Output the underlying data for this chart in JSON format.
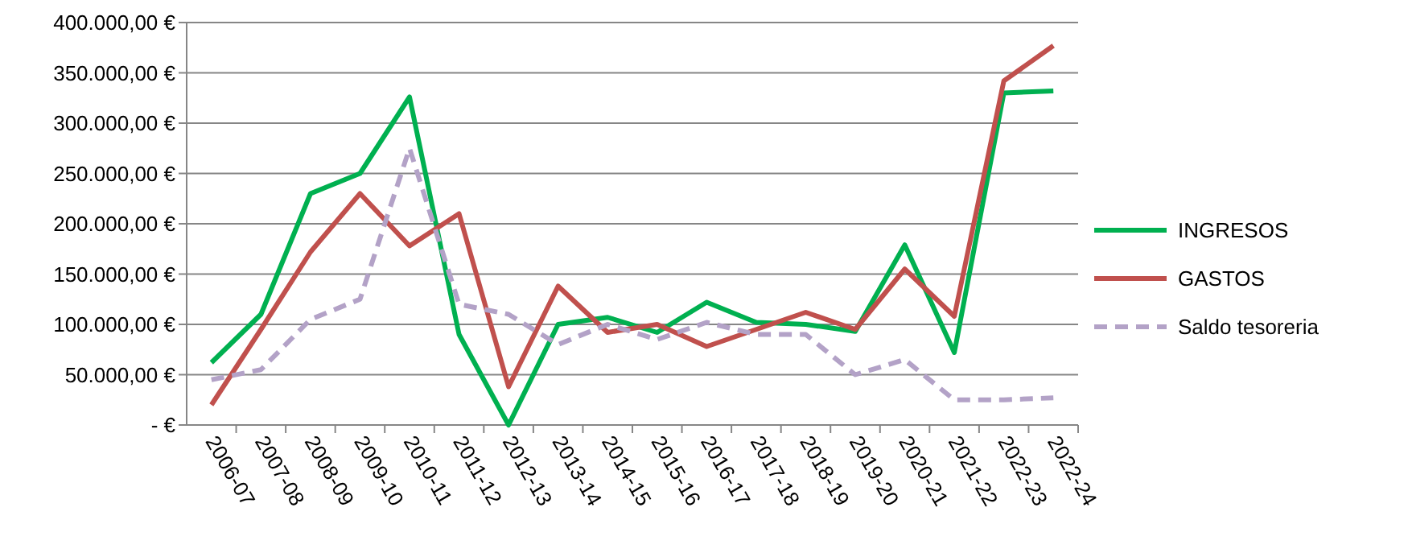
{
  "chart_data": {
    "type": "line",
    "categories": [
      "2006-07",
      "2007-08",
      "2008-09",
      "2009-10",
      "2010-11",
      "2011-12",
      "2012-13",
      "2013-14",
      "2014-15",
      "2015-16",
      "2016-17",
      "2017-18",
      "2018-19",
      "2019-20",
      "2020-21",
      "2021-22",
      "2022-23",
      "2022-24"
    ],
    "series": [
      {
        "name": "INGRESOS",
        "color": "#00b050",
        "values": [
          62000,
          110000,
          230000,
          250000,
          326000,
          90000,
          0,
          100000,
          107000,
          92000,
          122000,
          102000,
          100000,
          93000,
          179000,
          72000,
          330000,
          332000
        ]
      },
      {
        "name": "GASTOS",
        "color": "#c0504d",
        "values": [
          20000,
          95000,
          172000,
          230000,
          178000,
          210000,
          38000,
          138000,
          92000,
          100000,
          78000,
          95000,
          112000,
          95000,
          155000,
          108000,
          342000,
          377000
        ]
      },
      {
        "name": "Saldo tesoreria",
        "color": "#b3a2c7",
        "line_style": "dashed",
        "values": [
          45000,
          55000,
          105000,
          125000,
          275000,
          120000,
          110000,
          80000,
          100000,
          85000,
          102000,
          90000,
          90000,
          50000,
          65000,
          25000,
          25000,
          27000
        ]
      }
    ],
    "ylim": [
      0,
      400000
    ],
    "yticks": [
      {
        "value": 0,
        "label": "-  €"
      },
      {
        "value": 50000,
        "label": "50.000,00 €"
      },
      {
        "value": 100000,
        "label": "100.000,00 €"
      },
      {
        "value": 150000,
        "label": "150.000,00 €"
      },
      {
        "value": 200000,
        "label": "200.000,00 €"
      },
      {
        "value": 250000,
        "label": "250.000,00 €"
      },
      {
        "value": 300000,
        "label": "300.000,00 €"
      },
      {
        "value": 350000,
        "label": "350.000,00 €"
      },
      {
        "value": 400000,
        "label": "400.000,00 €"
      }
    ],
    "grid": "y",
    "legend": "right"
  }
}
